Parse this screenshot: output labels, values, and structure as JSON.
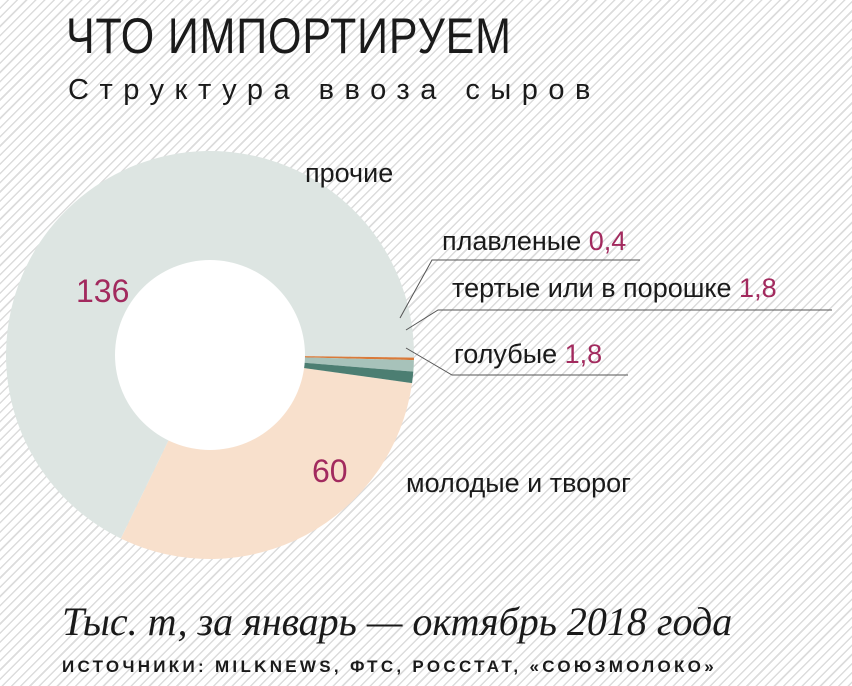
{
  "title": "ЧТО ИМПОРТИРУЕМ",
  "subtitle": "Структура ввоза сыров",
  "chart_data": {
    "type": "pie",
    "series": [
      {
        "name": "молодые и творог",
        "value": 60,
        "color": "#f8e0cc"
      },
      {
        "name": "прочие",
        "value": 136,
        "color": "#dde5e2"
      },
      {
        "name": "плавленые",
        "value": 0.4,
        "color": "#d97a3a"
      },
      {
        "name": "тертые или в порошке",
        "value": 1.8,
        "color": "#a7c2ba"
      },
      {
        "name": "голубые",
        "value": 1.8,
        "color": "#4c7e72"
      }
    ],
    "value_labels": {
      "молодые и творог": "60",
      "прочие": "136",
      "плавленые": "0,4",
      "тертые или в порошке": "1,8",
      "голубые": "1,8"
    },
    "hole": "white",
    "legend": "none"
  },
  "footer": {
    "unit_note": "Тыс. т, за январь — октябрь 2018 года",
    "sources": "ИСТОЧНИКИ: MILKNEWS, ФТС, РОССТАТ, «СОЮЗМОЛОКО»"
  }
}
